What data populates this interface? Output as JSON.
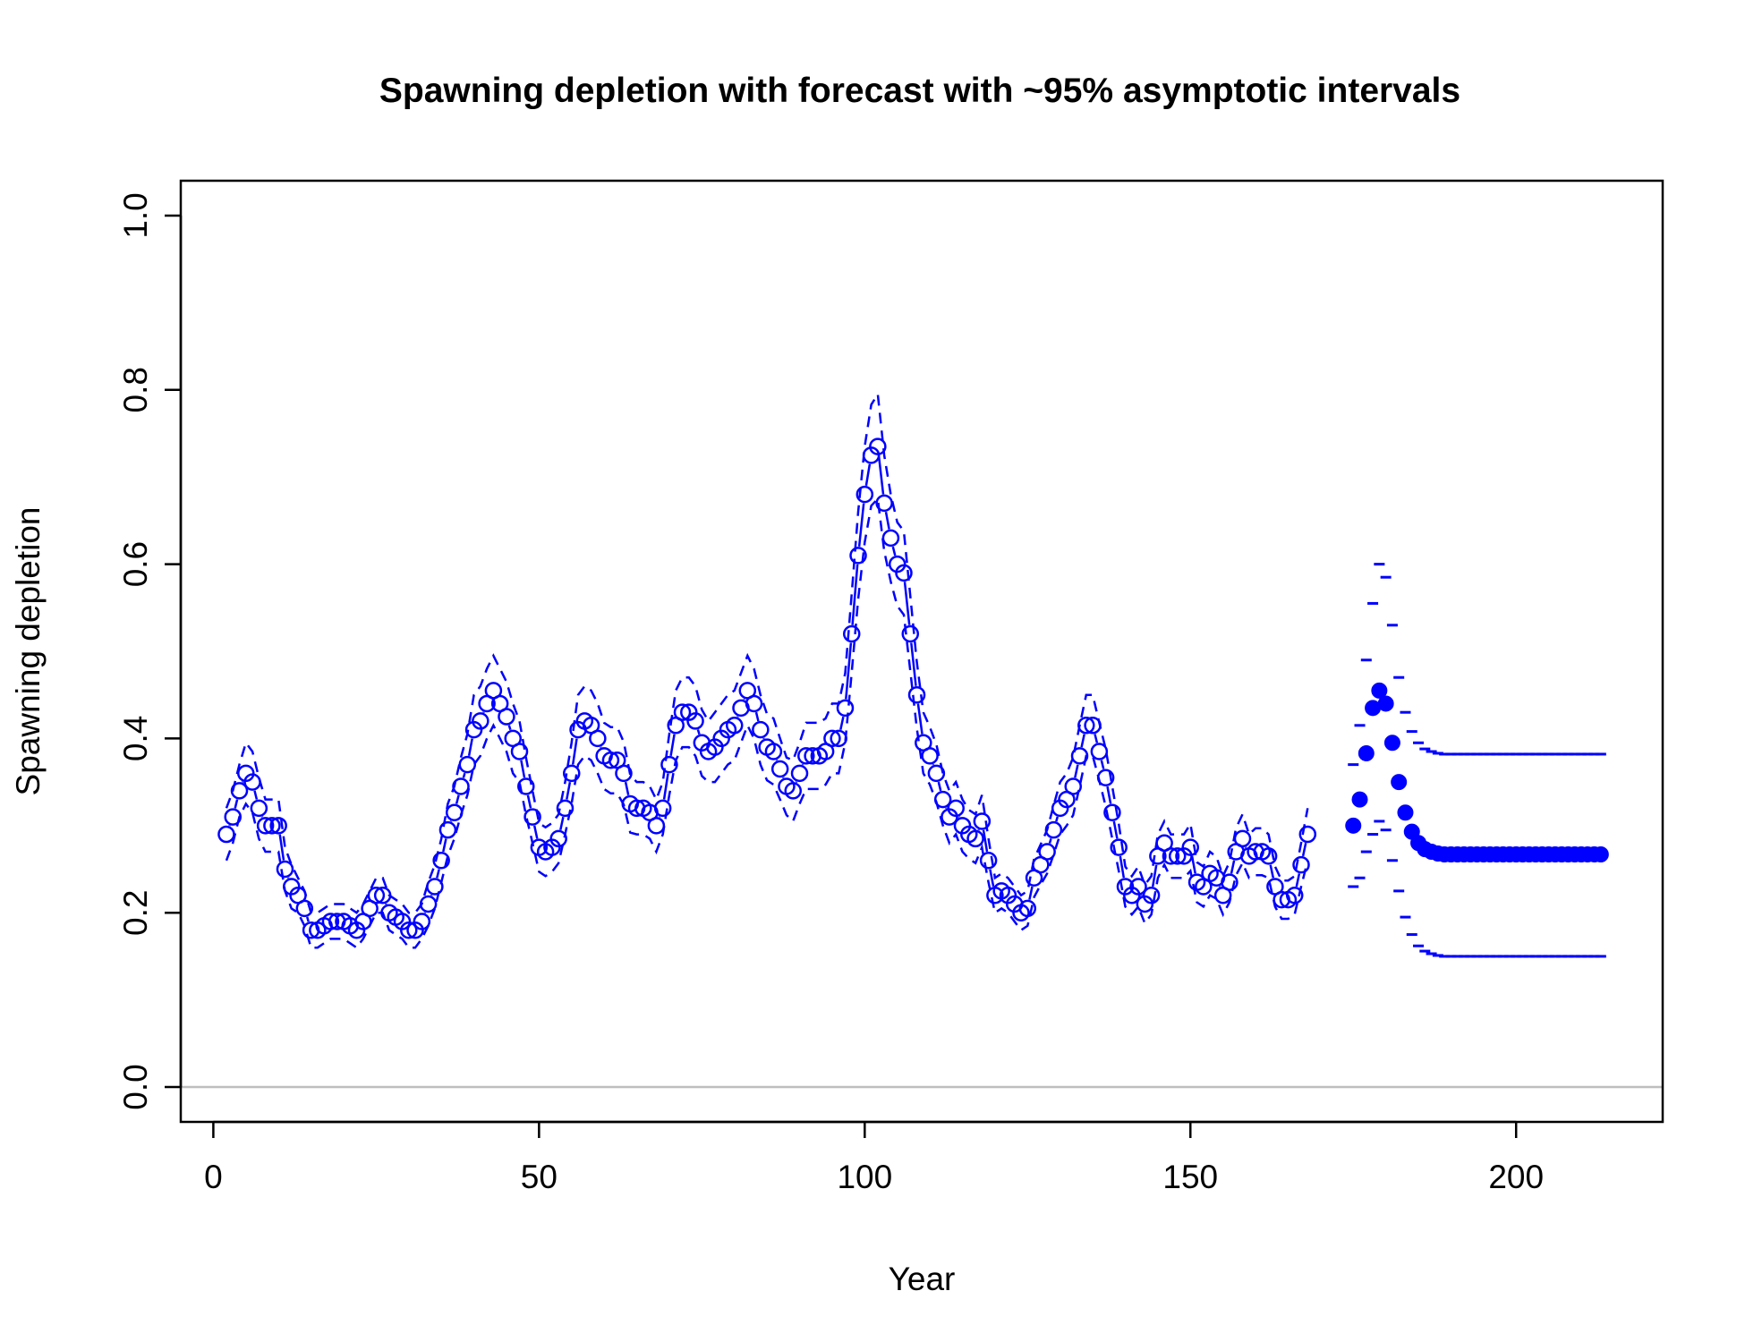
{
  "chart_data": {
    "type": "line",
    "title": "Spawning depletion with forecast with ~95% asymptotic intervals",
    "xlabel": "Year",
    "ylabel": "Spawning depletion",
    "xlim": [
      -5,
      222.5
    ],
    "ylim": [
      -0.04,
      1.04
    ],
    "x_ticks": [
      0,
      50,
      100,
      150,
      200
    ],
    "y_ticks": [
      0.0,
      0.2,
      0.4,
      0.6,
      0.8,
      1.0
    ],
    "x_tick_labels": [
      "0",
      "50",
      "100",
      "150",
      "200"
    ],
    "y_tick_labels": [
      "0.0",
      "0.2",
      "0.4",
      "0.6",
      "0.8",
      "1.0"
    ],
    "reference_line": {
      "y": 0.0,
      "color": "#bebebe"
    },
    "colors": {
      "series": "#0000ff",
      "axis": "#000000"
    },
    "series": [
      {
        "style": "line-with-open-circles",
        "x_start": 2,
        "values": [
          0.29,
          0.31,
          0.34,
          0.36,
          0.35,
          0.32,
          0.3,
          0.3,
          0.3,
          0.25,
          0.23,
          0.22,
          0.205,
          0.18,
          0.18,
          0.185,
          0.19,
          0.19,
          0.19,
          0.185,
          0.18,
          0.19,
          0.205,
          0.22,
          0.22,
          0.2,
          0.195,
          0.19,
          0.18,
          0.18,
          0.19,
          0.21,
          0.23,
          0.26,
          0.295,
          0.315,
          0.345,
          0.37,
          0.41,
          0.42,
          0.44,
          0.455,
          0.44,
          0.425,
          0.4,
          0.385,
          0.345,
          0.31,
          0.275,
          0.27,
          0.275,
          0.285,
          0.32,
          0.36,
          0.41,
          0.42,
          0.415,
          0.4,
          0.38,
          0.375,
          0.375,
          0.36,
          0.325,
          0.32,
          0.32,
          0.315,
          0.3,
          0.32,
          0.37,
          0.415,
          0.43,
          0.43,
          0.42,
          0.395,
          0.385,
          0.39,
          0.4,
          0.41,
          0.415,
          0.435,
          0.455,
          0.44,
          0.41,
          0.39,
          0.385,
          0.365,
          0.345,
          0.34,
          0.36,
          0.38,
          0.38,
          0.38,
          0.385,
          0.4,
          0.4,
          0.435,
          0.52,
          0.61,
          0.68,
          0.725,
          0.735,
          0.67,
          0.63,
          0.6,
          0.59,
          0.52,
          0.45,
          0.395,
          0.38,
          0.36,
          0.33,
          0.31,
          0.32,
          0.3,
          0.29,
          0.285,
          0.305,
          0.26,
          0.22,
          0.225,
          0.22,
          0.21,
          0.2,
          0.205,
          0.24,
          0.255,
          0.27,
          0.295,
          0.32,
          0.33,
          0.345,
          0.38,
          0.415,
          0.415,
          0.385,
          0.355,
          0.315,
          0.275,
          0.23,
          0.22,
          0.23,
          0.21,
          0.22,
          0.265,
          0.28,
          0.265,
          0.265,
          0.265,
          0.275,
          0.235,
          0.23,
          0.245,
          0.24,
          0.22,
          0.235,
          0.27,
          0.285,
          0.265,
          0.27,
          0.27,
          0.265,
          0.23,
          0.215,
          0.215,
          0.22,
          0.255,
          0.29
        ]
      },
      {
        "style": "dashed-upper-interval",
        "x_start": 2,
        "values": [
          0.32,
          0.34,
          0.37,
          0.395,
          0.385,
          0.355,
          0.33,
          0.33,
          0.33,
          0.275,
          0.255,
          0.24,
          0.225,
          0.2,
          0.2,
          0.205,
          0.21,
          0.21,
          0.21,
          0.205,
          0.2,
          0.21,
          0.225,
          0.24,
          0.24,
          0.22,
          0.215,
          0.21,
          0.2,
          0.2,
          0.21,
          0.235,
          0.255,
          0.285,
          0.325,
          0.345,
          0.378,
          0.405,
          0.45,
          0.46,
          0.48,
          0.495,
          0.48,
          0.465,
          0.44,
          0.42,
          0.378,
          0.34,
          0.303,
          0.298,
          0.303,
          0.313,
          0.35,
          0.395,
          0.45,
          0.46,
          0.455,
          0.44,
          0.418,
          0.413,
          0.413,
          0.396,
          0.358,
          0.35,
          0.35,
          0.345,
          0.33,
          0.35,
          0.405,
          0.455,
          0.47,
          0.47,
          0.46,
          0.433,
          0.42,
          0.43,
          0.44,
          0.45,
          0.455,
          0.475,
          0.495,
          0.48,
          0.45,
          0.428,
          0.423,
          0.4,
          0.378,
          0.375,
          0.395,
          0.418,
          0.418,
          0.418,
          0.423,
          0.44,
          0.44,
          0.475,
          0.565,
          0.66,
          0.735,
          0.783,
          0.795,
          0.725,
          0.68,
          0.648,
          0.638,
          0.563,
          0.488,
          0.43,
          0.413,
          0.393,
          0.36,
          0.34,
          0.35,
          0.33,
          0.318,
          0.313,
          0.335,
          0.285,
          0.24,
          0.245,
          0.24,
          0.23,
          0.22,
          0.225,
          0.262,
          0.278,
          0.295,
          0.323,
          0.35,
          0.36,
          0.378,
          0.415,
          0.45,
          0.45,
          0.418,
          0.388,
          0.345,
          0.302,
          0.253,
          0.242,
          0.253,
          0.232,
          0.242,
          0.29,
          0.305,
          0.29,
          0.29,
          0.29,
          0.302,
          0.258,
          0.253,
          0.27,
          0.264,
          0.242,
          0.258,
          0.297,
          0.313,
          0.29,
          0.297,
          0.297,
          0.29,
          0.253,
          0.237,
          0.237,
          0.242,
          0.28,
          0.32
        ]
      },
      {
        "style": "dashed-lower-interval",
        "x_start": 2,
        "values": [
          0.26,
          0.28,
          0.31,
          0.325,
          0.315,
          0.285,
          0.27,
          0.27,
          0.27,
          0.225,
          0.205,
          0.2,
          0.185,
          0.16,
          0.16,
          0.165,
          0.17,
          0.17,
          0.17,
          0.165,
          0.16,
          0.17,
          0.185,
          0.2,
          0.2,
          0.18,
          0.175,
          0.17,
          0.16,
          0.16,
          0.17,
          0.185,
          0.205,
          0.235,
          0.265,
          0.285,
          0.312,
          0.335,
          0.37,
          0.38,
          0.4,
          0.415,
          0.4,
          0.385,
          0.36,
          0.35,
          0.312,
          0.28,
          0.247,
          0.242,
          0.247,
          0.257,
          0.29,
          0.325,
          0.37,
          0.38,
          0.375,
          0.36,
          0.342,
          0.337,
          0.337,
          0.324,
          0.292,
          0.29,
          0.29,
          0.285,
          0.27,
          0.29,
          0.335,
          0.375,
          0.39,
          0.39,
          0.38,
          0.357,
          0.35,
          0.35,
          0.36,
          0.37,
          0.375,
          0.395,
          0.415,
          0.4,
          0.37,
          0.352,
          0.347,
          0.33,
          0.312,
          0.305,
          0.325,
          0.342,
          0.342,
          0.342,
          0.347,
          0.36,
          0.36,
          0.395,
          0.475,
          0.56,
          0.625,
          0.667,
          0.675,
          0.615,
          0.58,
          0.552,
          0.542,
          0.477,
          0.412,
          0.36,
          0.347,
          0.327,
          0.3,
          0.28,
          0.29,
          0.27,
          0.262,
          0.257,
          0.275,
          0.235,
          0.2,
          0.205,
          0.2,
          0.19,
          0.18,
          0.185,
          0.218,
          0.232,
          0.245,
          0.267,
          0.29,
          0.3,
          0.312,
          0.345,
          0.38,
          0.38,
          0.352,
          0.322,
          0.285,
          0.248,
          0.207,
          0.198,
          0.207,
          0.188,
          0.198,
          0.24,
          0.255,
          0.24,
          0.24,
          0.24,
          0.248,
          0.212,
          0.207,
          0.22,
          0.216,
          0.198,
          0.212,
          0.243,
          0.257,
          0.24,
          0.243,
          0.243,
          0.24,
          0.207,
          0.193,
          0.193,
          0.198,
          0.23,
          0.26
        ]
      },
      {
        "style": "forecast-filled-points",
        "x_start": 175,
        "values": [
          0.3,
          0.33,
          0.383,
          0.435,
          0.455,
          0.44,
          0.395,
          0.35,
          0.315,
          0.293,
          0.28,
          0.273,
          0.27,
          0.268,
          0.267,
          0.267,
          0.267,
          0.267,
          0.267,
          0.267,
          0.267,
          0.267,
          0.267,
          0.267,
          0.267,
          0.267,
          0.267,
          0.267,
          0.267,
          0.267,
          0.267,
          0.267,
          0.267,
          0.267,
          0.267,
          0.267,
          0.267,
          0.267,
          0.267
        ]
      },
      {
        "style": "forecast-upper-interval-ticks",
        "x_start": 175,
        "values": [
          0.37,
          0.415,
          0.49,
          0.555,
          0.6,
          0.585,
          0.53,
          0.47,
          0.43,
          0.408,
          0.395,
          0.388,
          0.385,
          0.383,
          0.382,
          0.382,
          0.382,
          0.382,
          0.382,
          0.382,
          0.382,
          0.382,
          0.382,
          0.382,
          0.382,
          0.382,
          0.382,
          0.382,
          0.382,
          0.382,
          0.382,
          0.382,
          0.382,
          0.382,
          0.382,
          0.382,
          0.382,
          0.382,
          0.382
        ]
      },
      {
        "style": "forecast-lower-interval-ticks",
        "x_start": 175,
        "values": [
          0.23,
          0.24,
          0.27,
          0.29,
          0.305,
          0.295,
          0.26,
          0.225,
          0.195,
          0.175,
          0.162,
          0.156,
          0.153,
          0.151,
          0.15,
          0.15,
          0.15,
          0.15,
          0.15,
          0.15,
          0.15,
          0.15,
          0.15,
          0.15,
          0.15,
          0.15,
          0.15,
          0.15,
          0.15,
          0.15,
          0.15,
          0.15,
          0.15,
          0.15,
          0.15,
          0.15,
          0.15,
          0.15,
          0.15
        ]
      }
    ]
  }
}
